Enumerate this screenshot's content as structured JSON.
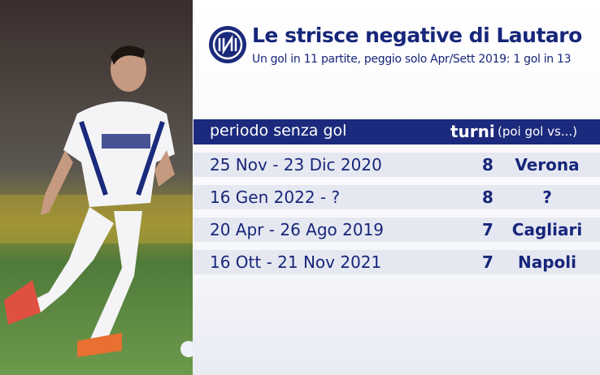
{
  "header": {
    "title": "Le strisce negative di Lautaro",
    "subtitle": "Un gol in 11 partite, peggio solo Apr/Sett 2019: 1 gol in 13"
  },
  "table": {
    "columns": [
      "periodo senza gol",
      "turni",
      "(poi gol vs...)"
    ],
    "rows": [
      [
        "25 Nov - 23 Dic 2020",
        8,
        "Verona"
      ],
      [
        "16 Gen 2022 - ?",
        8,
        "?"
      ],
      [
        "20 Apr - 26 Ago 2019",
        7,
        "Cagliari"
      ],
      [
        "16 Ott - 21 Nov 2021",
        7,
        "Napoli"
      ]
    ]
  }
}
